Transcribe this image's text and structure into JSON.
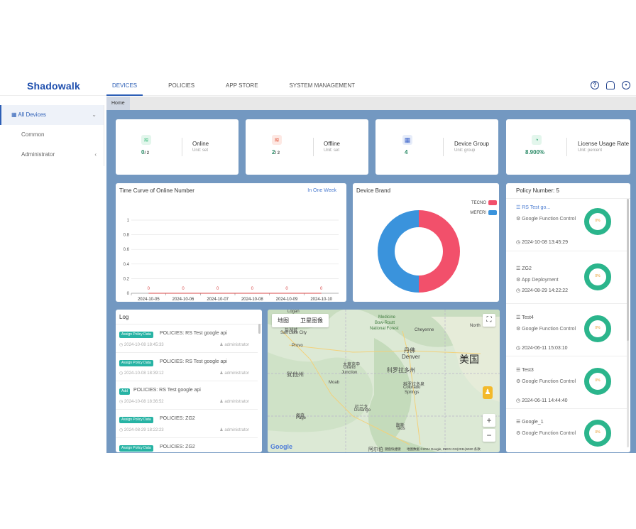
{
  "app": {
    "logo": "Shadowalk"
  },
  "nav": {
    "tabs": [
      "DEVICES",
      "POLICIES",
      "APP STORE",
      "SYSTEM MANAGEMENT"
    ],
    "active": "DEVICES"
  },
  "header_icons": [
    "help-icon",
    "bell-icon",
    "user-icon"
  ],
  "sidebar": {
    "items": [
      {
        "label": "All Devices",
        "icon": "devices-icon",
        "caret": "⌄"
      },
      {
        "label": "Common"
      },
      {
        "label": "Administrator",
        "caret": "‹"
      }
    ]
  },
  "breadcrumb": {
    "home": "Home"
  },
  "stats": [
    {
      "value": "0",
      "total": "/ 2",
      "label": "Online",
      "unit": "Unit: set",
      "icon": "wifi-icon",
      "color": "#3fbf7f"
    },
    {
      "value": "2",
      "total": "/ 2",
      "label": "Offline",
      "unit": "Unit: set",
      "icon": "wifi-off-icon",
      "color": "#e0553b"
    },
    {
      "value": "4",
      "total": "",
      "label": "Device Group",
      "unit": "Unit: group",
      "icon": "group-icon",
      "color": "#3a62c9"
    },
    {
      "value": "8.900%",
      "total": "",
      "label": "License Usage Rate",
      "unit": "Unit: percent",
      "icon": "clock-icon",
      "color": "#2aa36f"
    }
  ],
  "online_curve": {
    "title": "Time Curve of Online Number",
    "range_link": "In One Week",
    "point_labels": [
      "0",
      "0",
      "0",
      "0",
      "0",
      "0"
    ]
  },
  "device_brand": {
    "title": "Device Brand"
  },
  "chart_data": [
    {
      "type": "line",
      "title": "Time Curve of Online Number",
      "x": [
        "2024-10-05",
        "2024-10-06",
        "2024-10-07",
        "2024-10-08",
        "2024-10-09",
        "2024-10-10"
      ],
      "series": [
        {
          "values": [
            0,
            0,
            0,
            0,
            0,
            0
          ]
        }
      ],
      "yticks": [
        "0",
        "0.2",
        "0.4",
        "0.6",
        "0.8",
        "1"
      ],
      "ylim": [
        0,
        1
      ],
      "grid": true,
      "color": "#d94a4a"
    },
    {
      "type": "pie",
      "title": "Device Brand",
      "labels": [
        "TECNO",
        "MEFERI"
      ],
      "values": [
        1,
        1
      ],
      "colors": [
        "#f2506b",
        "#3a93dc"
      ],
      "legend": "top-right"
    }
  ],
  "log": {
    "title": "Log",
    "entries": [
      {
        "badge": "Assign Policy Data",
        "text": "POLICIES: RS Test google api",
        "time": "2024-10-08 18:45:33",
        "user": "administrator"
      },
      {
        "badge": "Assign Policy Data",
        "text": "POLICIES: RS Test google api",
        "time": "2024-10-08 18:39:12",
        "user": "administrator"
      },
      {
        "badge": "Add",
        "text": "POLICIES: RS Test google api",
        "time": "2024-10-08 18:36:52",
        "user": "administrator"
      },
      {
        "badge": "Assign Policy Data",
        "text": "POLICIES: ZG2",
        "time": "2024-08-29 18:22:23",
        "user": "administrator"
      },
      {
        "badge": "Assign Policy Data",
        "text": "POLICIES: ZG2",
        "time": "",
        "user": ""
      }
    ]
  },
  "map": {
    "tabs": [
      "地图",
      "卫星图像"
    ],
    "labels": [
      "Logan",
      "Medicine",
      "Bow-Routt",
      "National Forest",
      "Salt Lake City",
      "Cheyenne",
      "North",
      "盐湖城",
      "Provo",
      "丹佛",
      "Denver",
      "美国",
      "犹他州",
      "科罗拉多州",
      "大章克申",
      "Grand",
      "Junction",
      "Moab",
      "科罗拉多泉",
      "Colorado",
      "Springs",
      "杜兰戈",
      "Durango",
      "佩奇",
      "Page",
      "陶斯",
      "Taos",
      "阿尔伯"
    ],
    "attribution": "地图数据 ©2024 Google, INEGI  GS(2011)6020  条款",
    "shortcut": "键盘快捷键",
    "google": "Google",
    "zoom_in": "+",
    "zoom_out": "−"
  },
  "policies": {
    "title": "Policy Number:",
    "count": "5",
    "items": [
      {
        "name": "RS Test go...",
        "type": "Google Function Control",
        "time": "2024-10-08 13:45:29",
        "pct": "0%",
        "link": true
      },
      {
        "name": "ZG2",
        "type": "App Deployment",
        "time": "2024-08-29 14:22:22",
        "pct": "0%"
      },
      {
        "name": "Test4",
        "type": "Google Function Control",
        "time": "2024-06-11 15:03:10",
        "pct": "0%"
      },
      {
        "name": "Test3",
        "type": "Google Function Control",
        "time": "2024-06-11 14:44:40",
        "pct": "0%"
      },
      {
        "name": "Google_1",
        "type": "Google Function Control",
        "time": "",
        "pct": "0%"
      }
    ]
  }
}
